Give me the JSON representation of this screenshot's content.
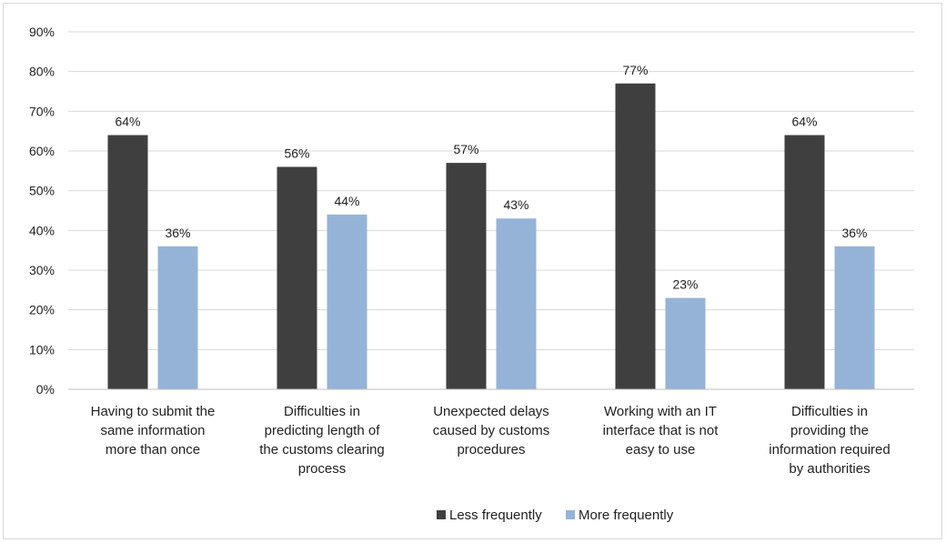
{
  "chart_data": {
    "type": "bar",
    "categories": [
      [
        "Having to submit the",
        "same information",
        "more than once"
      ],
      [
        "Difficulties in",
        "predicting length of",
        "the customs clearing",
        "process"
      ],
      [
        "Unexpected delays",
        "caused by customs",
        "procedures"
      ],
      [
        "Working with an IT",
        "interface that is not",
        "easy to use"
      ],
      [
        "Difficulties in",
        "providing the",
        "information required",
        "by authorities"
      ]
    ],
    "series": [
      {
        "name": "Less frequently",
        "color": "#3f3f3f",
        "values": [
          64,
          56,
          57,
          77,
          64
        ],
        "labels": [
          "64%",
          "56%",
          "57%",
          "77%",
          "64%"
        ]
      },
      {
        "name": "More frequently",
        "color": "#95b3d7",
        "values": [
          36,
          44,
          43,
          23,
          36
        ],
        "labels": [
          "36%",
          "44%",
          "43%",
          "23%",
          "36%"
        ]
      }
    ],
    "yticks": [
      "0%",
      "10%",
      "20%",
      "30%",
      "40%",
      "50%",
      "60%",
      "70%",
      "80%",
      "90%"
    ],
    "ylim": [
      0,
      90
    ],
    "grid": true,
    "legend": "bottom-center"
  }
}
